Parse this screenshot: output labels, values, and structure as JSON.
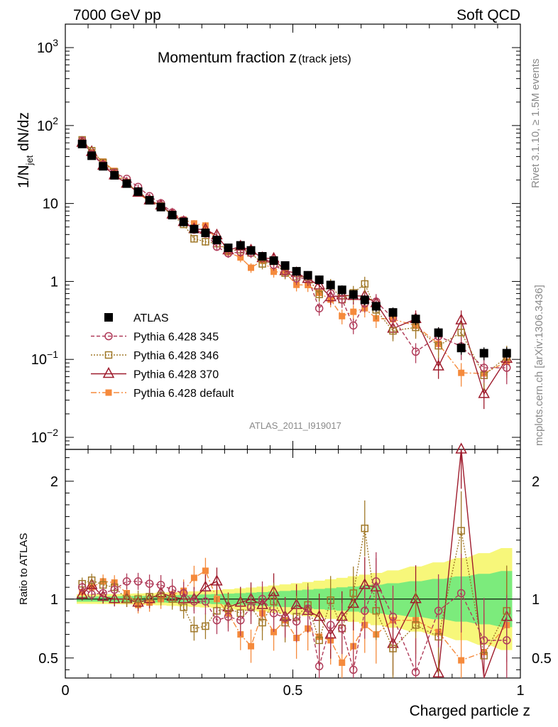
{
  "header": {
    "left": "7000 GeV pp",
    "right": "Soft QCD"
  },
  "side": {
    "top": "Rivet 3.1.10, ≥ 1.5M events",
    "bottom": "mcplots.cern.ch [arXiv:1306.3436]"
  },
  "chart_data": {
    "type": "scatter",
    "title": "Momentum fraction z",
    "title_sub": "(track jets)",
    "analysis_label": "ATLAS_2011_I919017",
    "xlabel": "Charged particle z",
    "ylabel_main": "1/N",
    "ylabel_sub": "jet",
    "ylabel_tail": " dN/dz",
    "ylabel_ratio": "Ratio to ATLAS",
    "xlim": [
      0,
      1
    ],
    "ylim": [
      0.007,
      2000
    ],
    "ratio_ylim": [
      0.33,
      2.27
    ],
    "x_ticks": [
      {
        "v": 0,
        "label": "0"
      },
      {
        "v": 0.5,
        "label": "0.5"
      },
      {
        "v": 1,
        "label": "1"
      }
    ],
    "y_ticks": [
      {
        "v": 1000,
        "base": "10",
        "exp": "3"
      },
      {
        "v": 100,
        "base": "10",
        "exp": "2"
      },
      {
        "v": 10,
        "base": "10",
        "exp": ""
      },
      {
        "v": 1,
        "base": "1",
        "exp": ""
      },
      {
        "v": 0.1,
        "base": "10",
        "exp": "−1"
      },
      {
        "v": 0.01,
        "base": "10",
        "exp": "−2"
      }
    ],
    "ratio_ticks": [
      {
        "v": 0.5,
        "label": "0.5"
      },
      {
        "v": 1,
        "label": "1"
      },
      {
        "v": 2,
        "label": "2"
      }
    ],
    "x": [
      0.037,
      0.058,
      0.083,
      0.108,
      0.135,
      0.16,
      0.185,
      0.21,
      0.235,
      0.26,
      0.283,
      0.308,
      0.333,
      0.358,
      0.385,
      0.408,
      0.433,
      0.458,
      0.483,
      0.508,
      0.533,
      0.558,
      0.583,
      0.608,
      0.633,
      0.658,
      0.683,
      0.72,
      0.77,
      0.82,
      0.87,
      0.92,
      0.97
    ],
    "series": [
      {
        "name": "ATLAS",
        "color": "#000000",
        "marker": "square-filled",
        "dash": "",
        "values": [
          58,
          41,
          30,
          23,
          18,
          14.2,
          11.0,
          9.0,
          7.1,
          5.8,
          4.7,
          4.2,
          3.4,
          2.7,
          2.9,
          2.5,
          2.1,
          1.85,
          1.6,
          1.35,
          1.2,
          1.05,
          0.9,
          0.78,
          0.68,
          0.58,
          0.48,
          0.4,
          0.33,
          0.22,
          0.14,
          0.12,
          0.12
        ]
      },
      {
        "name": "Pythia 6.428 345",
        "color": "#b03c5a",
        "marker": "circle-open",
        "dash": "5,3",
        "ratio": [
          1.1,
          1.04,
          1.05,
          1.08,
          1.15,
          1.15,
          1.13,
          1.12,
          1.08,
          1.05,
          0.98,
          0.98,
          0.82,
          0.85,
          0.82,
          0.93,
          1.0,
          0.88,
          0.84,
          0.81,
          0.92,
          0.43,
          0.78,
          0.75,
          0.4,
          0.9,
          1.15,
          0.85,
          0.38,
          0.9,
          1.05,
          0.65,
          0.65
        ]
      },
      {
        "name": "Pythia 6.428 346",
        "color": "#a07828",
        "marker": "square-open",
        "dash": "2,2",
        "ratio": [
          1.13,
          1.16,
          1.12,
          1.1,
          1.0,
          1.0,
          1.02,
          1.03,
          1.0,
          0.93,
          0.75,
          0.77,
          0.9,
          0.92,
          0.88,
          0.93,
          0.8,
          0.98,
          0.8,
          0.85,
          0.95,
          0.65,
          0.99,
          0.75,
          1.05,
          1.6,
          0.9,
          0.58,
          0.78,
          0.68,
          1.58,
          0.52,
          0.9
        ]
      },
      {
        "name": "Pythia 6.428 370",
        "color": "#9e1b2c",
        "marker": "triangle-open",
        "dash": "",
        "ratio": [
          1.04,
          1.12,
          1.02,
          1.0,
          1.0,
          0.97,
          1.0,
          1.05,
          1.02,
          1.0,
          1.0,
          1.1,
          1.15,
          0.93,
          0.97,
          1.0,
          0.95,
          1.06,
          0.85,
          0.95,
          0.9,
          0.85,
          0.7,
          0.85,
          0.96,
          1.12,
          1.1,
          0.62,
          1.0,
          0.37,
          2.27,
          0.3,
          0.85
        ]
      },
      {
        "name": "Pythia 6.428 default",
        "color": "#f58a3c",
        "marker": "square-filled",
        "dash": "8,3,2,3",
        "ratio": [
          1.06,
          1.1,
          1.15,
          1.14,
          1.05,
          0.95,
          0.97,
          1.0,
          1.04,
          1.07,
          1.18,
          1.24,
          1.0,
          0.88,
          0.7,
          0.6,
          0.88,
          0.72,
          0.82,
          0.67,
          0.75,
          0.68,
          0.65,
          0.46,
          0.6,
          0.78,
          0.7,
          0.82,
          0.82,
          0.72,
          0.48,
          0.55,
          0.78
        ]
      }
    ],
    "legend_position": "bottom-left"
  }
}
